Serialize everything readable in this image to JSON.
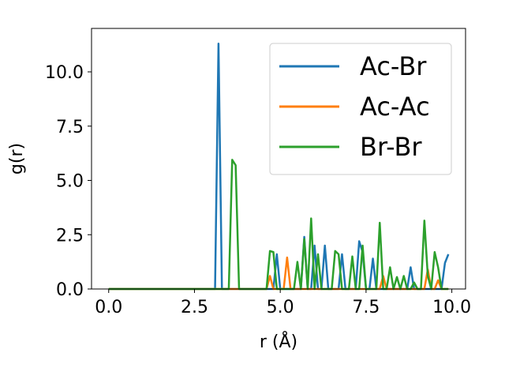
{
  "chart_data": {
    "type": "line",
    "xlabel": "r (Å)",
    "ylabel": "g(r)",
    "xlim": [
      -0.5,
      10.4
    ],
    "ylim": [
      0,
      12
    ],
    "xticks": [
      0.0,
      2.5,
      5.0,
      7.5,
      10.0
    ],
    "xtick_labels": [
      "0.0",
      "2.5",
      "5.0",
      "7.5",
      "10.0"
    ],
    "yticks": [
      0.0,
      2.5,
      5.0,
      7.5,
      10.0
    ],
    "ytick_labels": [
      "0.0",
      "2.5",
      "5.0",
      "7.5",
      "10.0"
    ],
    "grid": false,
    "legend_position": "top-right",
    "x": [
      0.0,
      0.1,
      0.2,
      0.3,
      0.4,
      0.5,
      0.6,
      0.7,
      0.8,
      0.9,
      1.0,
      1.1,
      1.2,
      1.3,
      1.4,
      1.5,
      1.6,
      1.7,
      1.8,
      1.9,
      2.0,
      2.1,
      2.2,
      2.3,
      2.4,
      2.5,
      2.6,
      2.7,
      2.8,
      2.9,
      3.0,
      3.1,
      3.2,
      3.3,
      3.4,
      3.5,
      3.6,
      3.7,
      3.8,
      3.9,
      4.0,
      4.1,
      4.2,
      4.3,
      4.4,
      4.5,
      4.6,
      4.7,
      4.8,
      4.9,
      5.0,
      5.1,
      5.2,
      5.3,
      5.4,
      5.5,
      5.6,
      5.7,
      5.8,
      5.9,
      6.0,
      6.1,
      6.2,
      6.3,
      6.4,
      6.5,
      6.6,
      6.7,
      6.8,
      6.9,
      7.0,
      7.1,
      7.2,
      7.3,
      7.4,
      7.5,
      7.6,
      7.7,
      7.8,
      7.9,
      8.0,
      8.1,
      8.2,
      8.3,
      8.4,
      8.5,
      8.6,
      8.7,
      8.8,
      8.9,
      9.0,
      9.1,
      9.2,
      9.3,
      9.4,
      9.5,
      9.6,
      9.7,
      9.8,
      9.9
    ],
    "series": [
      {
        "name": "Ac-Br",
        "color": "#1f77b4",
        "values": [
          0,
          0,
          0,
          0,
          0,
          0,
          0,
          0,
          0,
          0,
          0,
          0,
          0,
          0,
          0,
          0,
          0,
          0,
          0,
          0,
          0,
          0,
          0,
          0,
          0,
          0,
          0,
          0,
          0,
          0,
          0,
          0,
          11.3,
          0,
          0,
          0,
          0,
          0,
          0,
          0,
          0,
          0,
          0,
          0,
          0,
          0,
          0,
          0,
          0,
          1.6,
          0,
          0,
          0,
          0,
          0,
          0,
          0,
          2.4,
          0,
          0,
          2.0,
          0,
          0,
          2.0,
          0,
          0,
          0,
          0,
          1.6,
          0,
          0,
          0,
          0,
          2.2,
          1.7,
          0,
          0,
          1.4,
          0,
          0,
          0,
          0,
          0,
          0,
          0,
          0,
          0,
          0,
          1.0,
          0,
          0,
          0,
          0,
          0,
          0,
          0,
          0,
          0,
          1.2,
          1.6
        ]
      },
      {
        "name": "Ac-Ac",
        "color": "#ff7f0e",
        "values": [
          0,
          0,
          0,
          0,
          0,
          0,
          0,
          0,
          0,
          0,
          0,
          0,
          0,
          0,
          0,
          0,
          0,
          0,
          0,
          0,
          0,
          0,
          0,
          0,
          0,
          0,
          0,
          0,
          0,
          0,
          0,
          0,
          0,
          0,
          0,
          0,
          0,
          0,
          0,
          0,
          0,
          0,
          0,
          0,
          0,
          0,
          0,
          0.6,
          0,
          0,
          0,
          0,
          1.45,
          0,
          0,
          0,
          0,
          0,
          0,
          0,
          0,
          0,
          0,
          0,
          0,
          0,
          0,
          0,
          0,
          0,
          0,
          0,
          0,
          0,
          0,
          0,
          0,
          0,
          0,
          0,
          0.6,
          0,
          0,
          0,
          0,
          0,
          0,
          0,
          0,
          0,
          0,
          0,
          0,
          0.9,
          0,
          0,
          0.4,
          0,
          0,
          0
        ]
      },
      {
        "name": "Br-Br",
        "color": "#2ca02c",
        "values": [
          0,
          0,
          0,
          0,
          0,
          0,
          0,
          0,
          0,
          0,
          0,
          0,
          0,
          0,
          0,
          0,
          0,
          0,
          0,
          0,
          0,
          0,
          0,
          0,
          0,
          0,
          0,
          0,
          0,
          0,
          0,
          0,
          0,
          0,
          0,
          0,
          5.95,
          5.7,
          0,
          0,
          0,
          0,
          0,
          0,
          0,
          0,
          0,
          1.75,
          1.7,
          0,
          0,
          0,
          0,
          0,
          0,
          1.25,
          0,
          2.3,
          0,
          3.25,
          0,
          1.6,
          0,
          0,
          0,
          0,
          1.75,
          1.6,
          0,
          0,
          0,
          1.5,
          0,
          0,
          2.0,
          0,
          0,
          0,
          0,
          3.05,
          0,
          0,
          1.0,
          0,
          0.55,
          0,
          0.6,
          0,
          0,
          0.3,
          0,
          0,
          3.15,
          0.6,
          0,
          1.7,
          1.0,
          0,
          0,
          0
        ]
      }
    ]
  }
}
